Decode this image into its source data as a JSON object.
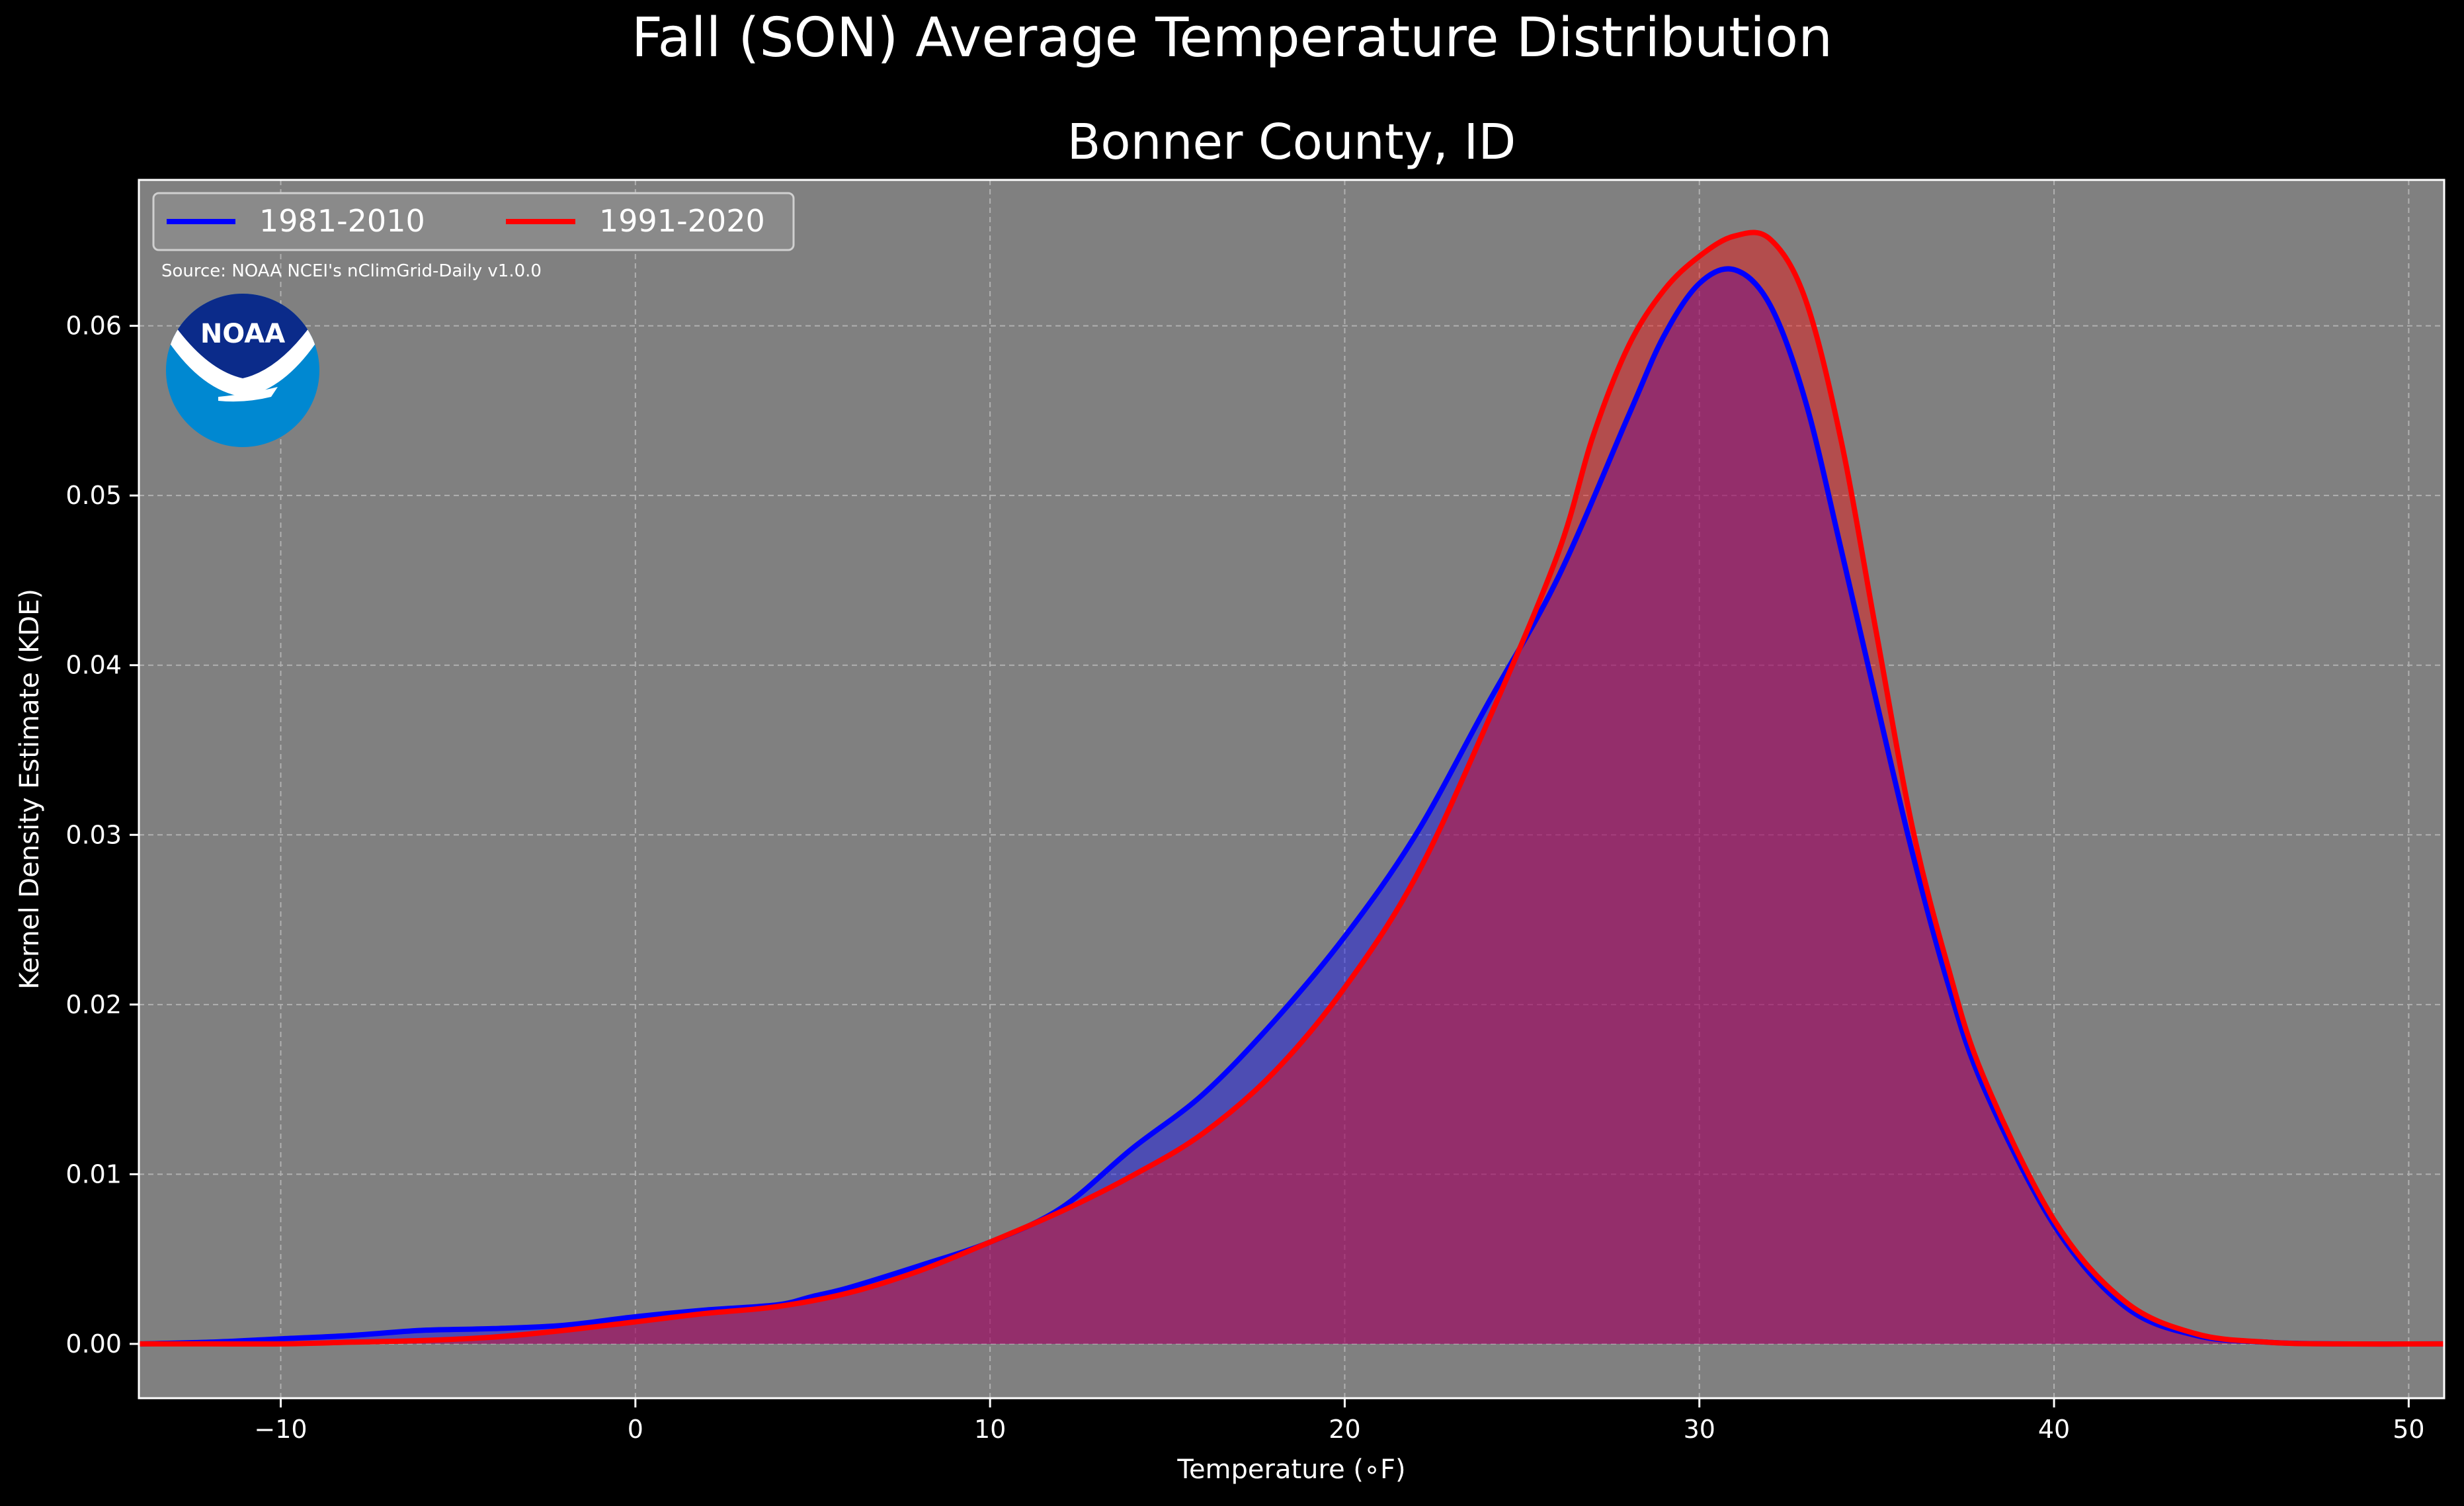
{
  "chart_data": {
    "type": "area",
    "title": "Fall (SON) Average Temperature Distribution",
    "subtitle": "Bonner County, ID",
    "xlabel": "Temperature (∘F)",
    "ylabel": "Kernel Density Estimate (KDE)",
    "xlim": [
      -14,
      51
    ],
    "ylim": [
      -0.0032,
      0.0686
    ],
    "x_ticks": [
      -10,
      0,
      10,
      20,
      30,
      40,
      50
    ],
    "x_tick_labels": [
      "−10",
      "0",
      "10",
      "20",
      "30",
      "40",
      "50"
    ],
    "y_ticks": [
      0.0,
      0.01,
      0.02,
      0.03,
      0.04,
      0.05,
      0.06
    ],
    "y_tick_labels": [
      "0.00",
      "0.01",
      "0.02",
      "0.03",
      "0.04",
      "0.05",
      "0.06"
    ],
    "grid": true,
    "legend_position": "top-left",
    "source_note": "Source: NOAA NCEI's nClimGrid-Daily v1.0.0",
    "logo_text": "NOAA",
    "background": "#808080",
    "series": [
      {
        "name": "1981-2010",
        "color": "#0000ff",
        "fill": "rgba(0,0,255,0.4)",
        "x": [
          -14,
          -12,
          -10,
          -8,
          -6,
          -4,
          -2,
          0,
          2,
          4,
          5,
          6,
          8,
          10,
          12,
          14,
          16,
          18,
          20,
          22,
          24,
          26,
          28,
          29,
          30,
          31,
          32,
          33,
          34,
          35,
          36,
          37,
          38,
          40,
          42,
          44,
          46,
          48,
          51
        ],
        "y": [
          0.0,
          0.0001,
          0.0003,
          0.0005,
          0.0008,
          0.0009,
          0.0011,
          0.0016,
          0.002,
          0.0023,
          0.0028,
          0.0033,
          0.0046,
          0.006,
          0.008,
          0.0115,
          0.0147,
          0.019,
          0.024,
          0.03,
          0.0376,
          0.0451,
          0.0547,
          0.0594,
          0.0625,
          0.0633,
          0.0612,
          0.0555,
          0.0468,
          0.0378,
          0.029,
          0.0213,
          0.0152,
          0.007,
          0.0022,
          0.0005,
          0.0001,
          0.0,
          0.0
        ]
      },
      {
        "name": "1991-2020",
        "color": "#ff0000",
        "fill": "rgba(255,0,0,0.4)",
        "x": [
          -14,
          -12,
          -10,
          -8,
          -6,
          -4,
          -2,
          0,
          2,
          4,
          6,
          8,
          10,
          12,
          14,
          16,
          18,
          20,
          22,
          24,
          26,
          27,
          28,
          29,
          30,
          31,
          32,
          33,
          34,
          35,
          36,
          37,
          38,
          40,
          42,
          44,
          46,
          48,
          51
        ],
        "y": [
          0.0,
          0.0,
          0.0,
          0.0001,
          0.0002,
          0.0004,
          0.0008,
          0.0013,
          0.0018,
          0.0022,
          0.003,
          0.0043,
          0.006,
          0.0078,
          0.0099,
          0.0124,
          0.016,
          0.021,
          0.0275,
          0.0365,
          0.0465,
          0.0535,
          0.0588,
          0.0621,
          0.0641,
          0.0653,
          0.0651,
          0.0615,
          0.0532,
          0.0418,
          0.0305,
          0.0223,
          0.0158,
          0.0073,
          0.0025,
          0.0006,
          0.0001,
          0.0,
          0.0
        ]
      }
    ]
  }
}
